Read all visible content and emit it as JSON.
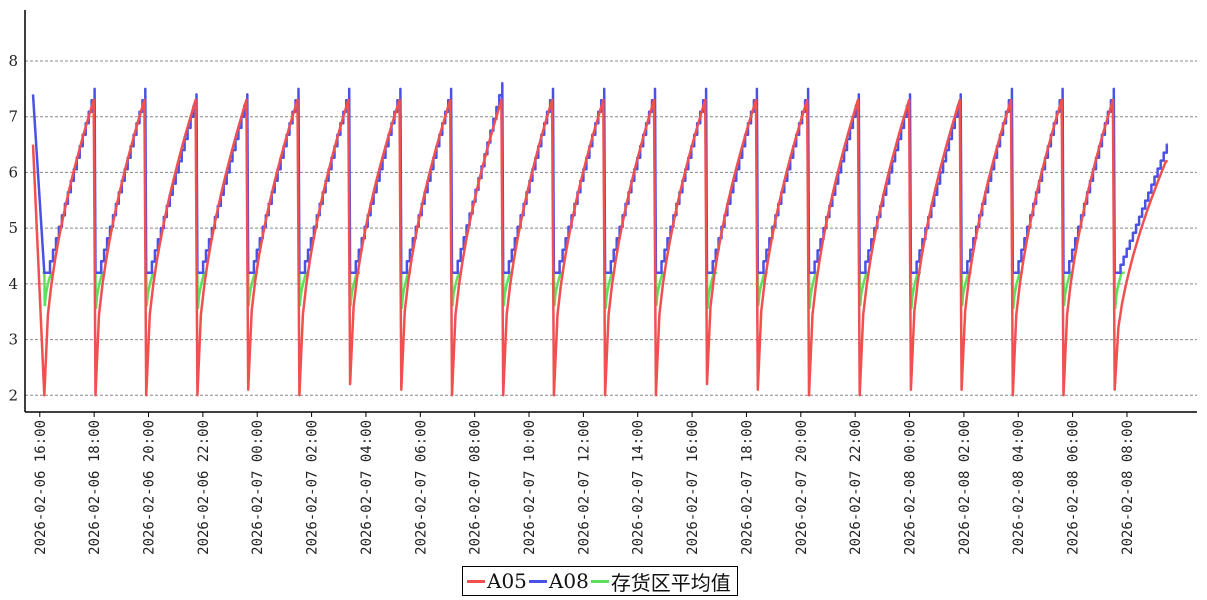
{
  "chart_data": {
    "type": "line",
    "title": "",
    "xlabel": "",
    "ylabel": "",
    "ylim": [
      1.7,
      8.7
    ],
    "xlim": [
      "2026-02-06 15:45",
      "2026-02-08 09:35"
    ],
    "yticks": [
      2,
      3,
      4,
      5,
      6,
      7,
      8
    ],
    "grid": "horizontal dashed",
    "legend_position": "bottom-center",
    "x_tick_labels": [
      "2026-02-06 16:00",
      "2026-02-06 18:00",
      "2026-02-06 20:00",
      "2026-02-06 22:00",
      "2026-02-07 00:00",
      "2026-02-07 02:00",
      "2026-02-07 04:00",
      "2026-02-07 06:00",
      "2026-02-07 08:00",
      "2026-02-07 10:00",
      "2026-02-07 12:00",
      "2026-02-07 14:00",
      "2026-02-07 16:00",
      "2026-02-07 18:00",
      "2026-02-07 20:00",
      "2026-02-07 22:00",
      "2026-02-08 00:00",
      "2026-02-08 02:00",
      "2026-02-08 04:00",
      "2026-02-08 06:00",
      "2026-02-08 08:00"
    ],
    "cycle_start": [
      "2026-02-06 16:10",
      "2026-02-06 18:03",
      "2026-02-06 19:55",
      "2026-02-06 21:48",
      "2026-02-06 23:40",
      "2026-02-07 01:33",
      "2026-02-07 03:25",
      "2026-02-07 05:18",
      "2026-02-07 07:10",
      "2026-02-07 09:03",
      "2026-02-07 10:55",
      "2026-02-07 12:48",
      "2026-02-07 14:40",
      "2026-02-07 16:33",
      "2026-02-07 18:25",
      "2026-02-07 20:18",
      "2026-02-07 22:10",
      "2026-02-08 00:03",
      "2026-02-08 01:55",
      "2026-02-08 03:48",
      "2026-02-08 05:40",
      "2026-02-08 07:33"
    ],
    "series": [
      {
        "name": "A05",
        "color": "#f05050",
        "start_value": 6.5,
        "end_value": 6.2,
        "cycle_min": [
          2.0,
          2.0,
          2.0,
          2.0,
          2.1,
          2.0,
          2.2,
          2.1,
          2.0,
          2.0,
          2.0,
          2.0,
          2.0,
          2.2,
          2.1,
          2.0,
          2.0,
          2.1,
          2.1,
          2.0,
          2.0,
          2.1
        ],
        "cycle_max": [
          7.3,
          7.3,
          7.3,
          7.3,
          7.3,
          7.3,
          7.3,
          7.3,
          7.3,
          7.3,
          7.3,
          7.3,
          7.3,
          7.3,
          7.3,
          7.3,
          7.3,
          7.3,
          7.3,
          7.3,
          7.3
        ]
      },
      {
        "name": "A08",
        "color": "#4a52e6",
        "start_value": 7.4,
        "end_value": 6.5,
        "cycle_min": [
          4.2,
          4.2,
          4.2,
          4.2,
          4.2,
          4.2,
          4.2,
          4.2,
          4.2,
          4.2,
          4.2,
          4.2,
          4.2,
          4.2,
          4.2,
          4.2,
          4.2,
          4.2,
          4.2,
          4.2,
          4.2,
          4.2
        ],
        "cycle_max": [
          7.5,
          7.5,
          7.4,
          7.4,
          7.5,
          7.5,
          7.5,
          7.5,
          7.6,
          7.5,
          7.5,
          7.5,
          7.5,
          7.5,
          7.5,
          7.4,
          7.4,
          7.4,
          7.5,
          7.5,
          7.5
        ]
      },
      {
        "name": "存货区平均值",
        "color": "#5ee05e",
        "floor_value": 4.2,
        "cycle_min": [
          3.6,
          3.55,
          3.6,
          3.55,
          3.6,
          3.6,
          3.6,
          3.55,
          3.6,
          3.6,
          3.6,
          3.55,
          3.6,
          3.55,
          3.6,
          3.55,
          3.6,
          3.55,
          3.6,
          3.55,
          3.6,
          3.55
        ]
      }
    ]
  }
}
